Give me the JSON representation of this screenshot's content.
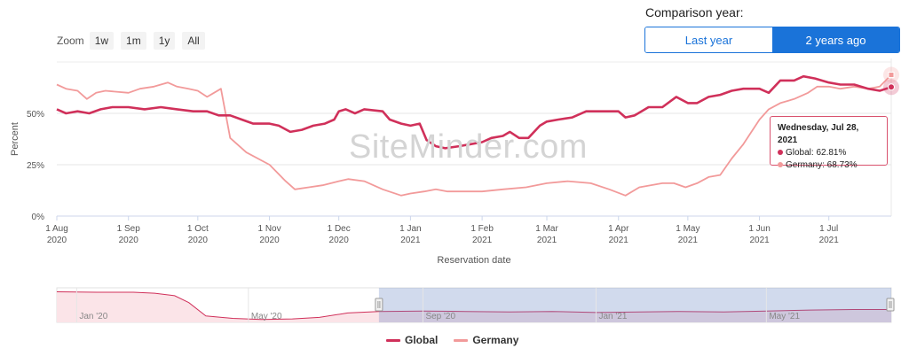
{
  "comparison": {
    "label": "Comparison year:",
    "options": [
      "Last year",
      "2 years ago"
    ],
    "selected": "2 years ago"
  },
  "zoom": {
    "label": "Zoom",
    "buttons": [
      "1w",
      "1m",
      "1y",
      "All"
    ]
  },
  "watermark": "SiteMinder.com",
  "tooltip": {
    "date": "Wednesday, Jul 28, 2021",
    "lines": [
      {
        "label": "Global: 62.81%",
        "color": "#d0305a"
      },
      {
        "label": "Germany: 68.73%",
        "color": "#f29a9a"
      }
    ]
  },
  "legend": [
    {
      "name": "Global",
      "color": "#d0305a"
    },
    {
      "name": "Germany",
      "color": "#f29a9a"
    }
  ],
  "chart_data": {
    "type": "line",
    "title": "",
    "xlabel": "Reservation date",
    "ylabel": "Percent",
    "ylim": [
      0,
      75
    ],
    "xlim": [
      "2020-08-01",
      "2021-07-28"
    ],
    "yticks": [
      0,
      25,
      50
    ],
    "ytick_labels": [
      "0%",
      "25%",
      "50%"
    ],
    "xticks": [
      {
        "date": "2020-08-01",
        "label": [
          "1 Aug",
          "2020"
        ]
      },
      {
        "date": "2020-09-01",
        "label": [
          "1 Sep",
          "2020"
        ]
      },
      {
        "date": "2020-10-01",
        "label": [
          "1 Oct",
          "2020"
        ]
      },
      {
        "date": "2020-11-01",
        "label": [
          "1 Nov",
          "2020"
        ]
      },
      {
        "date": "2020-12-01",
        "label": [
          "1 Dec",
          "2020"
        ]
      },
      {
        "date": "2021-01-01",
        "label": [
          "1 Jan",
          "2021"
        ]
      },
      {
        "date": "2021-02-01",
        "label": [
          "1 Feb",
          "2021"
        ]
      },
      {
        "date": "2021-03-01",
        "label": [
          "1 Mar",
          "2021"
        ]
      },
      {
        "date": "2021-04-01",
        "label": [
          "1 Apr",
          "2021"
        ]
      },
      {
        "date": "2021-05-01",
        "label": [
          "1 May",
          "2021"
        ]
      },
      {
        "date": "2021-06-01",
        "label": [
          "1 Jun",
          "2021"
        ]
      },
      {
        "date": "2021-07-01",
        "label": [
          "1 Jul",
          "2021"
        ]
      }
    ],
    "grid": true,
    "legend_position": "bottom-center",
    "series": [
      {
        "name": "Global",
        "color": "#d0305a",
        "points": [
          [
            "2020-08-01",
            52
          ],
          [
            "2020-08-05",
            50
          ],
          [
            "2020-08-10",
            51
          ],
          [
            "2020-08-15",
            50
          ],
          [
            "2020-08-20",
            52
          ],
          [
            "2020-08-25",
            53
          ],
          [
            "2020-09-01",
            53
          ],
          [
            "2020-09-08",
            52
          ],
          [
            "2020-09-15",
            53
          ],
          [
            "2020-09-22",
            52
          ],
          [
            "2020-09-29",
            51
          ],
          [
            "2020-10-05",
            51
          ],
          [
            "2020-10-10",
            49
          ],
          [
            "2020-10-15",
            49
          ],
          [
            "2020-10-20",
            47
          ],
          [
            "2020-10-25",
            45
          ],
          [
            "2020-11-01",
            45
          ],
          [
            "2020-11-05",
            44
          ],
          [
            "2020-11-10",
            41
          ],
          [
            "2020-11-15",
            42
          ],
          [
            "2020-11-20",
            44
          ],
          [
            "2020-11-25",
            45
          ],
          [
            "2020-11-29",
            47
          ],
          [
            "2020-12-01",
            51
          ],
          [
            "2020-12-04",
            52
          ],
          [
            "2020-12-08",
            50
          ],
          [
            "2020-12-12",
            52
          ],
          [
            "2020-12-20",
            51
          ],
          [
            "2020-12-23",
            47
          ],
          [
            "2020-12-28",
            45
          ],
          [
            "2021-01-01",
            44
          ],
          [
            "2021-01-05",
            45
          ],
          [
            "2021-01-08",
            37
          ],
          [
            "2021-01-12",
            34
          ],
          [
            "2021-01-16",
            33
          ],
          [
            "2021-01-22",
            34
          ],
          [
            "2021-01-27",
            35
          ],
          [
            "2021-02-01",
            36
          ],
          [
            "2021-02-05",
            38
          ],
          [
            "2021-02-10",
            39
          ],
          [
            "2021-02-13",
            41
          ],
          [
            "2021-02-17",
            38
          ],
          [
            "2021-02-21",
            38
          ],
          [
            "2021-02-26",
            44
          ],
          [
            "2021-03-01",
            46
          ],
          [
            "2021-03-06",
            47
          ],
          [
            "2021-03-12",
            48
          ],
          [
            "2021-03-18",
            51
          ],
          [
            "2021-03-25",
            51
          ],
          [
            "2021-04-01",
            51
          ],
          [
            "2021-04-04",
            48
          ],
          [
            "2021-04-08",
            49
          ],
          [
            "2021-04-14",
            53
          ],
          [
            "2021-04-20",
            53
          ],
          [
            "2021-04-26",
            58
          ],
          [
            "2021-05-01",
            55
          ],
          [
            "2021-05-05",
            55
          ],
          [
            "2021-05-10",
            58
          ],
          [
            "2021-05-15",
            59
          ],
          [
            "2021-05-20",
            61
          ],
          [
            "2021-05-25",
            62
          ],
          [
            "2021-06-01",
            62
          ],
          [
            "2021-06-05",
            60
          ],
          [
            "2021-06-10",
            66
          ],
          [
            "2021-06-16",
            66
          ],
          [
            "2021-06-20",
            68
          ],
          [
            "2021-06-25",
            67
          ],
          [
            "2021-07-01",
            65
          ],
          [
            "2021-07-06",
            64
          ],
          [
            "2021-07-12",
            64
          ],
          [
            "2021-07-18",
            62
          ],
          [
            "2021-07-23",
            61
          ],
          [
            "2021-07-28",
            62.81
          ]
        ]
      },
      {
        "name": "Germany",
        "color": "#f29a9a",
        "points": [
          [
            "2020-08-01",
            64
          ],
          [
            "2020-08-05",
            62
          ],
          [
            "2020-08-10",
            61
          ],
          [
            "2020-08-14",
            57
          ],
          [
            "2020-08-18",
            60
          ],
          [
            "2020-08-22",
            61
          ],
          [
            "2020-09-01",
            60
          ],
          [
            "2020-09-06",
            62
          ],
          [
            "2020-09-12",
            63
          ],
          [
            "2020-09-18",
            65
          ],
          [
            "2020-09-22",
            63
          ],
          [
            "2020-09-27",
            62
          ],
          [
            "2020-10-01",
            61
          ],
          [
            "2020-10-05",
            58
          ],
          [
            "2020-10-08",
            60
          ],
          [
            "2020-10-11",
            62
          ],
          [
            "2020-10-15",
            38
          ],
          [
            "2020-10-22",
            31
          ],
          [
            "2020-11-01",
            25
          ],
          [
            "2020-11-08",
            17
          ],
          [
            "2020-11-12",
            13
          ],
          [
            "2020-11-18",
            14
          ],
          [
            "2020-11-24",
            15
          ],
          [
            "2020-12-01",
            17
          ],
          [
            "2020-12-05",
            18
          ],
          [
            "2020-12-12",
            17
          ],
          [
            "2020-12-20",
            13
          ],
          [
            "2020-12-28",
            10
          ],
          [
            "2021-01-01",
            11
          ],
          [
            "2021-01-07",
            12
          ],
          [
            "2021-01-12",
            13
          ],
          [
            "2021-01-17",
            12
          ],
          [
            "2021-01-25",
            12
          ],
          [
            "2021-02-01",
            12
          ],
          [
            "2021-02-10",
            13
          ],
          [
            "2021-02-20",
            14
          ],
          [
            "2021-03-01",
            16
          ],
          [
            "2021-03-10",
            17
          ],
          [
            "2021-03-20",
            16
          ],
          [
            "2021-03-28",
            13
          ],
          [
            "2021-04-04",
            10
          ],
          [
            "2021-04-10",
            14
          ],
          [
            "2021-04-20",
            16
          ],
          [
            "2021-04-25",
            16
          ],
          [
            "2021-04-30",
            14
          ],
          [
            "2021-05-05",
            16
          ],
          [
            "2021-05-10",
            19
          ],
          [
            "2021-05-15",
            20
          ],
          [
            "2021-05-20",
            28
          ],
          [
            "2021-05-25",
            35
          ],
          [
            "2021-06-01",
            47
          ],
          [
            "2021-06-05",
            52
          ],
          [
            "2021-06-10",
            55
          ],
          [
            "2021-06-16",
            57
          ],
          [
            "2021-06-22",
            60
          ],
          [
            "2021-06-26",
            63
          ],
          [
            "2021-07-01",
            63
          ],
          [
            "2021-07-06",
            62
          ],
          [
            "2021-07-12",
            63
          ],
          [
            "2021-07-18",
            62
          ],
          [
            "2021-07-23",
            63
          ],
          [
            "2021-07-28",
            68.73
          ]
        ]
      }
    ],
    "hover_date": "2021-07-28",
    "navigator": {
      "labels": [
        "Jan '20",
        "May '20",
        "Sep '20",
        "Jan '21",
        "May '21"
      ],
      "label_dates": [
        "2020-01-01",
        "2020-05-01",
        "2020-09-01",
        "2021-01-01",
        "2021-05-01"
      ],
      "range": [
        "2019-12-18",
        "2021-07-28"
      ],
      "selected": [
        "2020-08-01",
        "2021-07-28"
      ],
      "series_points": [
        [
          "2019-12-18",
          62
        ],
        [
          "2020-01-15",
          61
        ],
        [
          "2020-02-10",
          61
        ],
        [
          "2020-02-25",
          59
        ],
        [
          "2020-03-10",
          54
        ],
        [
          "2020-03-20",
          40
        ],
        [
          "2020-04-01",
          13
        ],
        [
          "2020-04-20",
          8
        ],
        [
          "2020-05-10",
          6
        ],
        [
          "2020-06-01",
          7
        ],
        [
          "2020-06-20",
          10
        ],
        [
          "2020-07-10",
          19
        ],
        [
          "2020-08-01",
          22
        ],
        [
          "2020-09-01",
          23
        ],
        [
          "2020-10-01",
          22
        ],
        [
          "2020-11-01",
          21
        ],
        [
          "2020-12-01",
          22
        ],
        [
          "2021-01-01",
          20
        ],
        [
          "2021-02-01",
          21
        ],
        [
          "2021-03-01",
          22
        ],
        [
          "2021-04-01",
          21
        ],
        [
          "2021-05-01",
          23
        ],
        [
          "2021-06-01",
          25
        ],
        [
          "2021-07-01",
          26
        ],
        [
          "2021-07-28",
          26
        ]
      ]
    }
  }
}
